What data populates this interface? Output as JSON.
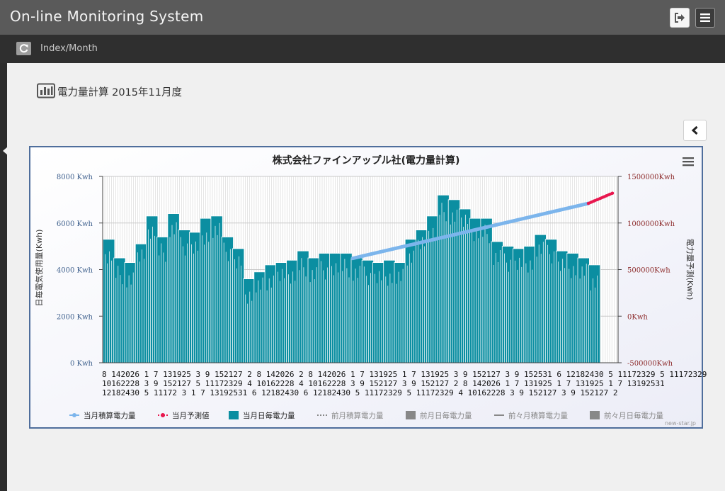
{
  "header": {
    "app_title": "On-line Monitoring System",
    "logout_icon": "sign-out-icon",
    "menu_icon": "hamburger-menu-icon"
  },
  "subheader": {
    "refresh_icon": "refresh-icon",
    "breadcrumb": "Index/Month"
  },
  "page": {
    "heading_icon": "bar-chart-icon",
    "heading": "電力量計算 2015年11月度",
    "collapse_icon": "chevron-left-icon"
  },
  "chart_data": {
    "type": "bar",
    "title": "株式会社ファインアップル社(電力量計算)",
    "ylabel_left": "日毎電気使用量(Kwh)",
    "ylabel_right": "電力量予測(Kwh)",
    "left_axis": {
      "min": 0,
      "max": 8000,
      "ticks": [
        "0 Kwh",
        "2000 Kwh",
        "4000 Kwh",
        "6000 Kwh",
        "8000 Kwh"
      ]
    },
    "right_axis": {
      "min": -500000,
      "max": 1500000,
      "ticks": [
        "-500000Kwh",
        "0Kwh",
        "500000Kwh",
        "1000000Kwh",
        "1500000Kwh"
      ]
    },
    "x_tick_rows": [
      "8 142026 1  7 131925 3  9 152127 2  8 142026 2  8 142026 1  7 131925 1  7 131925 3  9 152127 3  9 152531 6 12182430 5 11172329 5 11172329",
      "10162228 3  9 152127 5 11172329 4 10162228 4 10162228 3  9 152127 3  9 152127 2  8 142026 1  7 131925 1  7 131925 1  7 13192531",
      "12182430 5 11172 3 1  7 13192531 6 12182430 6 12182430 5 11172329 5 11172329 4 10162228 3  9 152127 3  9 152127 2"
    ],
    "grid": true,
    "legend_placement": "bottom",
    "legend": [
      {
        "name": "当月積算電力量",
        "color": "#7cb5ec",
        "active": true
      },
      {
        "name": "当月予測値",
        "color": "#e8174e",
        "active": true
      },
      {
        "name": "当月日毎電力量",
        "color": "#0b8ea1",
        "active": true
      },
      {
        "name": "前月積算電力量",
        "color": "#888888",
        "active": false
      },
      {
        "name": "前月日毎電力量",
        "color": "#888888",
        "active": false
      },
      {
        "name": "前々月積算電力量",
        "color": "#888888",
        "active": false
      },
      {
        "name": "前々月日毎電力量",
        "color": "#888888",
        "active": false
      }
    ],
    "credit": "new-star.jp",
    "daily_blocks": [
      5300,
      4500,
      4300,
      5100,
      6300,
      5400,
      6400,
      5700,
      5600,
      6200,
      6300,
      5400,
      4900,
      3600,
      3900,
      4200,
      4300,
      4400,
      4800,
      4500,
      4700,
      4700,
      4700,
      4500,
      4400,
      4300,
      4400,
      4300,
      5300,
      5700,
      6300,
      7200,
      7000,
      6600,
      6200,
      6200,
      5200,
      5000,
      4900,
      5000,
      5500,
      5300,
      4800,
      4700,
      4500,
      4200
    ],
    "cumulative_series": {
      "start": 620000,
      "end": 1210000
    },
    "forecast_series": {
      "start": 1210000,
      "end": 1320000
    }
  }
}
